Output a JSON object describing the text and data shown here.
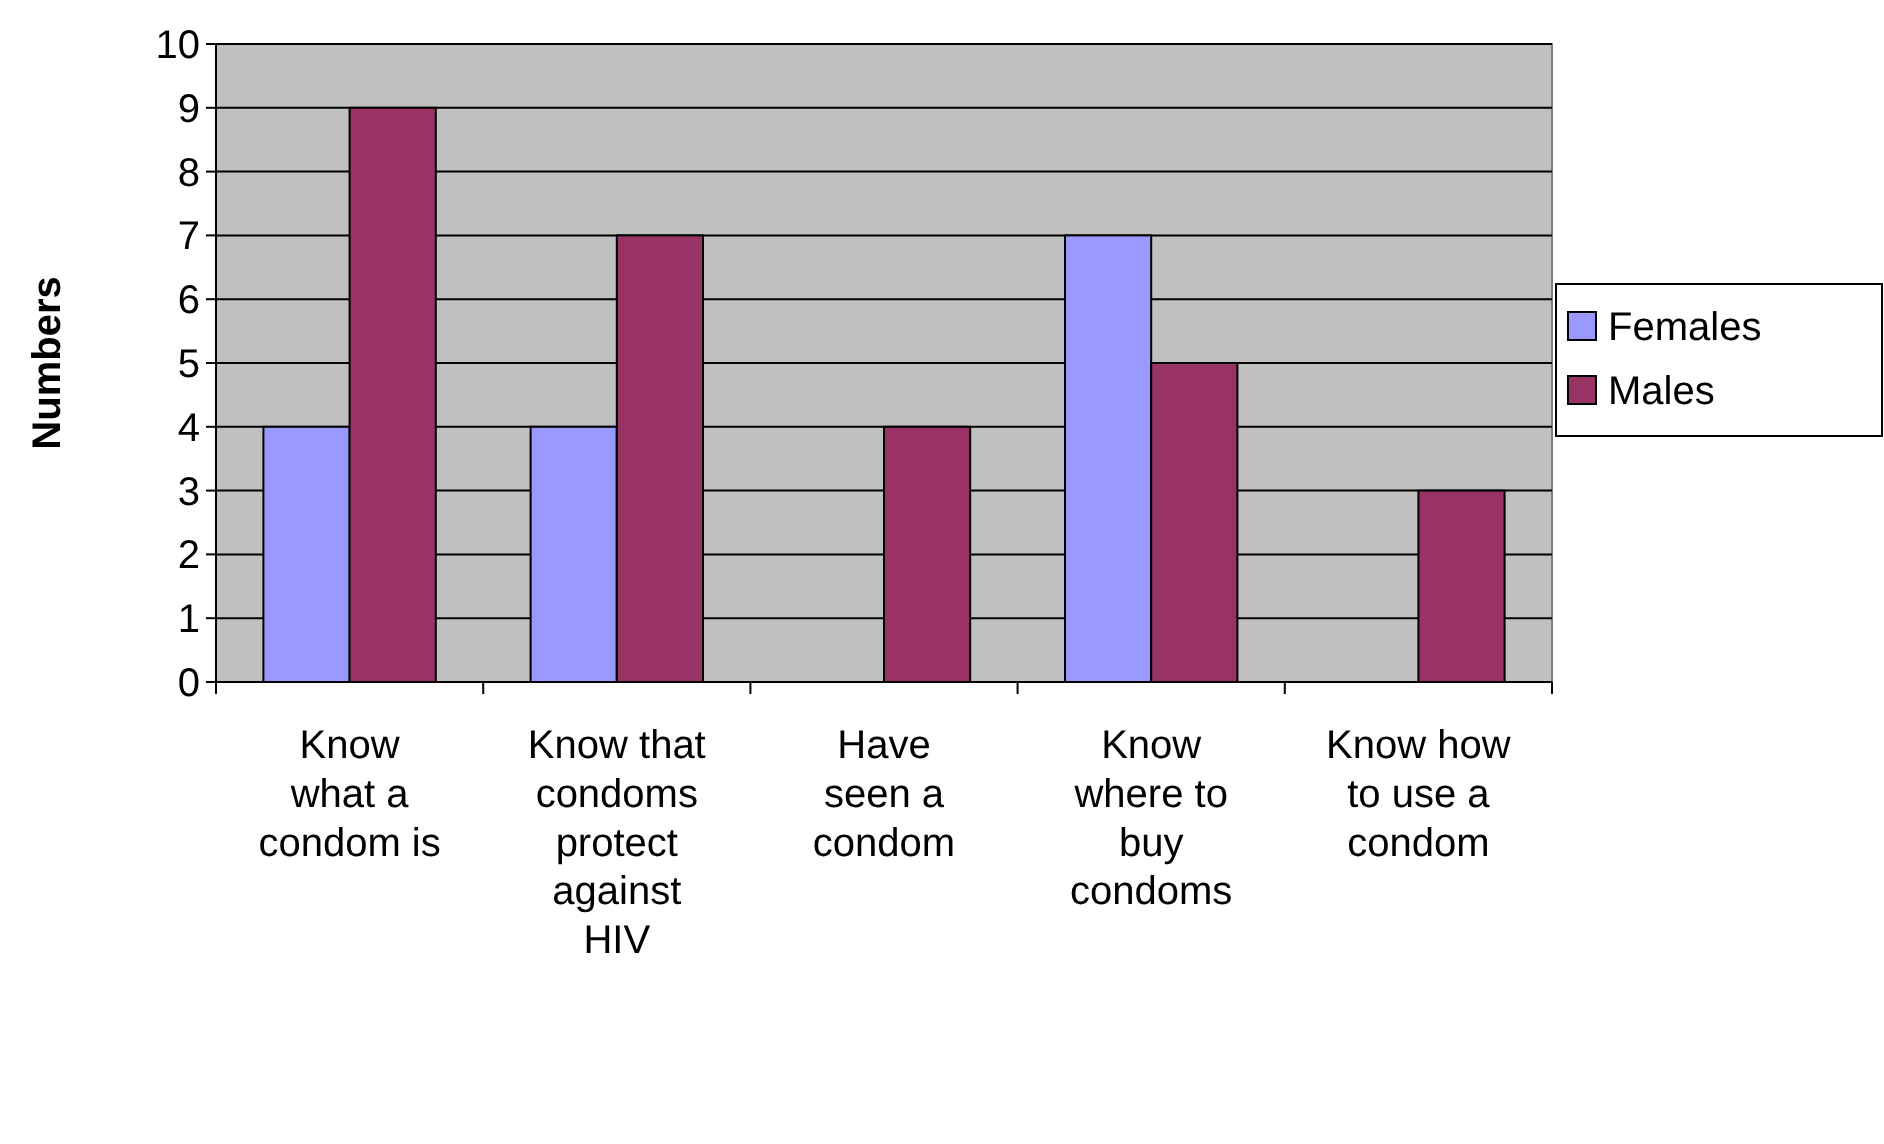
{
  "chart_data": {
    "type": "bar",
    "ylabel": "Numbers",
    "categories": [
      "Know what a condom is",
      "Know that condoms protect against HIV",
      "Have seen a condom",
      "Know where to buy condoms",
      "Know how to use a condom"
    ],
    "series": [
      {
        "name": "Females",
        "color": "#9999ff",
        "values": [
          4,
          4,
          null,
          7,
          null
        ]
      },
      {
        "name": "Males",
        "color": "#993366",
        "values": [
          9,
          7,
          4,
          5,
          3
        ]
      }
    ],
    "ylim": [
      0,
      10
    ],
    "yticks": [
      0,
      1,
      2,
      3,
      4,
      5,
      6,
      7,
      8,
      9,
      10
    ],
    "grid": "y",
    "legend": "right"
  }
}
